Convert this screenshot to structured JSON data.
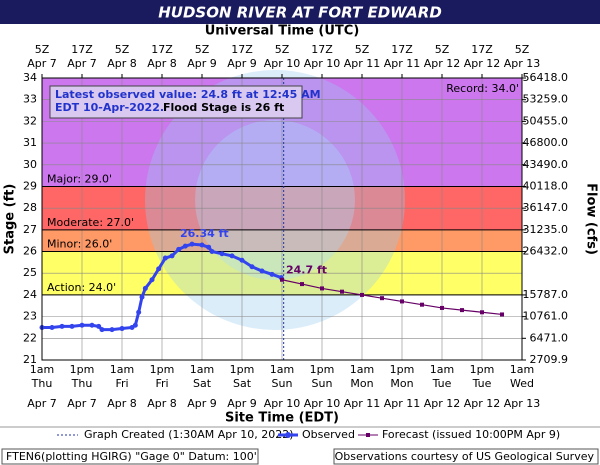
{
  "chart_data": {
    "type": "line",
    "title": "HUDSON RIVER AT FORT EDWARD",
    "top_axis_title": "Universal Time (UTC)",
    "xlabel": "Site Time (EDT)",
    "ylabel": "Stage (ft)",
    "y2label": "Flow (cfs)",
    "xlim": [
      0,
      144
    ],
    "xticks": [
      {
        "value": 0,
        "label": "1am"
      },
      {
        "value": 12,
        "label": "1pm"
      },
      {
        "value": 24,
        "label": "1am"
      },
      {
        "value": 36,
        "label": "1pm"
      },
      {
        "value": 48,
        "label": "1am"
      },
      {
        "value": 60,
        "label": "1pm"
      },
      {
        "value": 72,
        "label": "1am"
      },
      {
        "value": 84,
        "label": "1pm"
      },
      {
        "value": 96,
        "label": "1am"
      },
      {
        "value": 108,
        "label": "1pm"
      },
      {
        "value": 120,
        "label": "1am"
      },
      {
        "value": 132,
        "label": "1pm"
      },
      {
        "value": 144,
        "label": "1am"
      }
    ],
    "xtick_days": [
      "Thu",
      "Thu",
      "Fri",
      "Fri",
      "Sat",
      "Sat",
      "Sun",
      "Sun",
      "Mon",
      "Mon",
      "Tue",
      "Tue",
      "Wed"
    ],
    "xtick_dates": [
      "Apr 7",
      "Apr 7",
      "Apr 8",
      "Apr 8",
      "Apr 9",
      "Apr 9",
      "Apr 10",
      "Apr 10",
      "Apr 11",
      "Apr 11",
      "Apr 12",
      "Apr 12",
      "Apr 13"
    ],
    "top_xticks": [
      {
        "value": 0,
        "label": "5Z"
      },
      {
        "value": 12,
        "label": "17Z"
      },
      {
        "value": 24,
        "label": "5Z"
      },
      {
        "value": 36,
        "label": "17Z"
      },
      {
        "value": 48,
        "label": "5Z"
      },
      {
        "value": 60,
        "label": "17Z"
      },
      {
        "value": 72,
        "label": "5Z"
      },
      {
        "value": 84,
        "label": "17Z"
      },
      {
        "value": 96,
        "label": "5Z"
      },
      {
        "value": 108,
        "label": "17Z"
      },
      {
        "value": 120,
        "label": "5Z"
      },
      {
        "value": 132,
        "label": "17Z"
      },
      {
        "value": 144,
        "label": "5Z"
      }
    ],
    "top_xtick_dates": [
      "Apr 7",
      "Apr 7",
      "Apr 8",
      "Apr 8",
      "Apr 9",
      "Apr 9",
      "Apr 10",
      "Apr 10",
      "Apr 11",
      "Apr 11",
      "Apr 12",
      "Apr 12",
      "Apr 13"
    ],
    "ylim": [
      21,
      34
    ],
    "yticks": [
      21,
      22,
      23,
      24,
      25,
      26,
      27,
      28,
      29,
      30,
      31,
      32,
      33,
      34
    ],
    "flow_ticks": [
      {
        "stage": 34,
        "value": 56418,
        "label": "56418.0"
      },
      {
        "stage": 33,
        "value": 53259,
        "label": "53259.0"
      },
      {
        "stage": 32,
        "value": 50455,
        "label": "50455.0"
      },
      {
        "stage": 31,
        "value": 46800,
        "label": "46800.0"
      },
      {
        "stage": 30,
        "value": 43490,
        "label": "43490.0"
      },
      {
        "stage": 29,
        "value": 40118,
        "label": "40118.0"
      },
      {
        "stage": 28,
        "value": 36147,
        "label": "36147.0"
      },
      {
        "stage": 27,
        "value": 31235,
        "label": "31235.0"
      },
      {
        "stage": 26,
        "value": 26432,
        "label": "26432.0"
      },
      {
        "stage": 24,
        "value": 15787,
        "label": "15787.0"
      },
      {
        "stage": 23,
        "value": 10761,
        "label": "10761.0"
      },
      {
        "stage": 22,
        "value": 6471,
        "label": "6471.0"
      },
      {
        "stage": 21,
        "value": 2709.9,
        "label": "2709.9"
      }
    ],
    "grid": true,
    "thresholds": [
      {
        "name": "Action:  24.0'",
        "value": 24,
        "color": "#ffff66"
      },
      {
        "name": "Minor:  26.0'",
        "value": 26,
        "color": "#ff9966"
      },
      {
        "name": "Moderate:  27.0'",
        "value": 27,
        "color": "#ff6666"
      },
      {
        "name": "Major:  29.0'",
        "value": 29,
        "color": "#cc77ee"
      }
    ],
    "record": {
      "label": "Record:  34.0'",
      "value": 34
    },
    "series": [
      {
        "name": "Observed",
        "color": "#3344ee",
        "x": [
          0,
          3,
          6,
          9,
          12,
          15,
          17,
          18,
          21,
          24,
          27,
          28,
          29,
          30,
          31,
          33,
          35,
          37,
          39,
          41,
          43,
          45,
          48,
          50,
          51,
          54,
          57,
          60,
          63,
          66,
          69,
          71.75
        ],
        "values": [
          22.5,
          22.5,
          22.55,
          22.55,
          22.6,
          22.6,
          22.55,
          22.4,
          22.4,
          22.45,
          22.5,
          22.6,
          23.2,
          23.9,
          24.3,
          24.7,
          25.2,
          25.7,
          25.8,
          26.1,
          26.25,
          26.34,
          26.3,
          26.2,
          26.0,
          25.9,
          25.8,
          25.6,
          25.3,
          25.1,
          24.95,
          24.8
        ]
      },
      {
        "name": "Forecast (issued 10:00PM Apr 9)",
        "color": "#660066",
        "x": [
          72,
          78,
          84,
          90,
          96,
          102,
          108,
          114,
          120,
          126,
          132,
          138
        ],
        "values": [
          24.7,
          24.5,
          24.3,
          24.15,
          24.0,
          23.85,
          23.7,
          23.55,
          23.4,
          23.3,
          23.2,
          23.1
        ]
      }
    ],
    "annotations": [
      {
        "text": "26.34 ft",
        "x": 45,
        "y": 26.34,
        "color": "#3344ee"
      },
      {
        "text": "24.7 ft",
        "x": 72,
        "y": 24.7,
        "color": "#660066"
      }
    ],
    "created": {
      "label": "Graph Created (1:30AM Apr 10, 2022)",
      "x": 72.5
    },
    "info_lines": [
      "Latest observed value: 24.8 ft at 12:45 AM",
      "EDT 10-Apr-2022."
    ],
    "info_flood": "Flood Stage is 26 ft",
    "footer_left": "FTEN6(plotting HGIRG) \"Gage 0\" Datum: 100'",
    "footer_right": "Observations courtesy of US Geological Survey"
  }
}
